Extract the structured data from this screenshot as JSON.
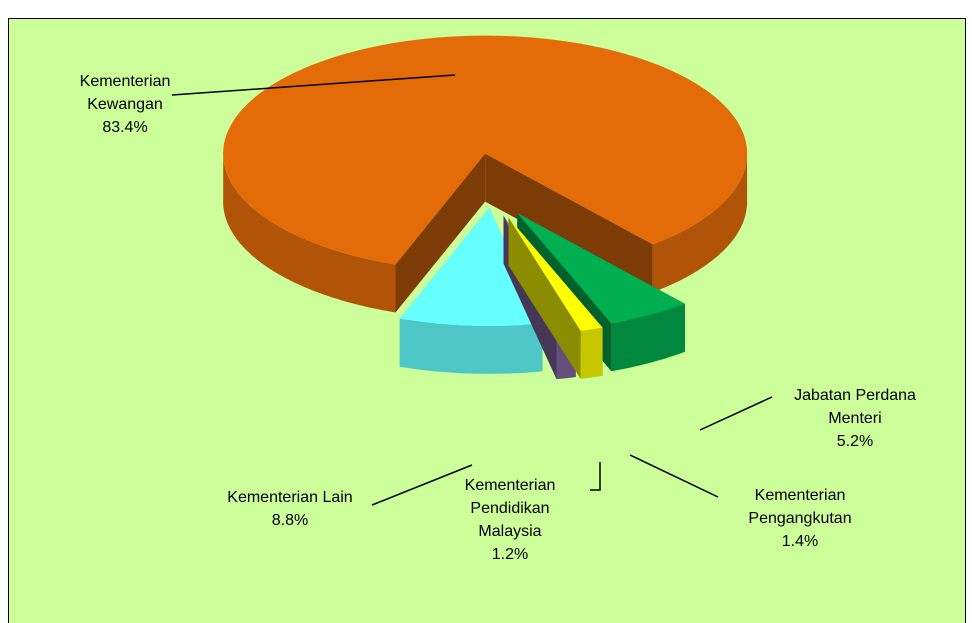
{
  "chart_data": {
    "type": "pie",
    "categories": [
      "Kementerian Kewangan",
      "Jabatan Perdana Menteri",
      "Kementerian Pengangkutan",
      "Kementerian Pendidikan Malaysia",
      "Kementerian Lain"
    ],
    "values": [
      83.4,
      5.2,
      1.4,
      1.2,
      8.8
    ],
    "value_labels": [
      "83.4%",
      "5.2%",
      "1.4%",
      "1.2%",
      "8.8%"
    ],
    "colors": [
      "#e36c09",
      "#00b050",
      "#ffff00",
      "#8064a2",
      "#66ffff"
    ]
  }
}
